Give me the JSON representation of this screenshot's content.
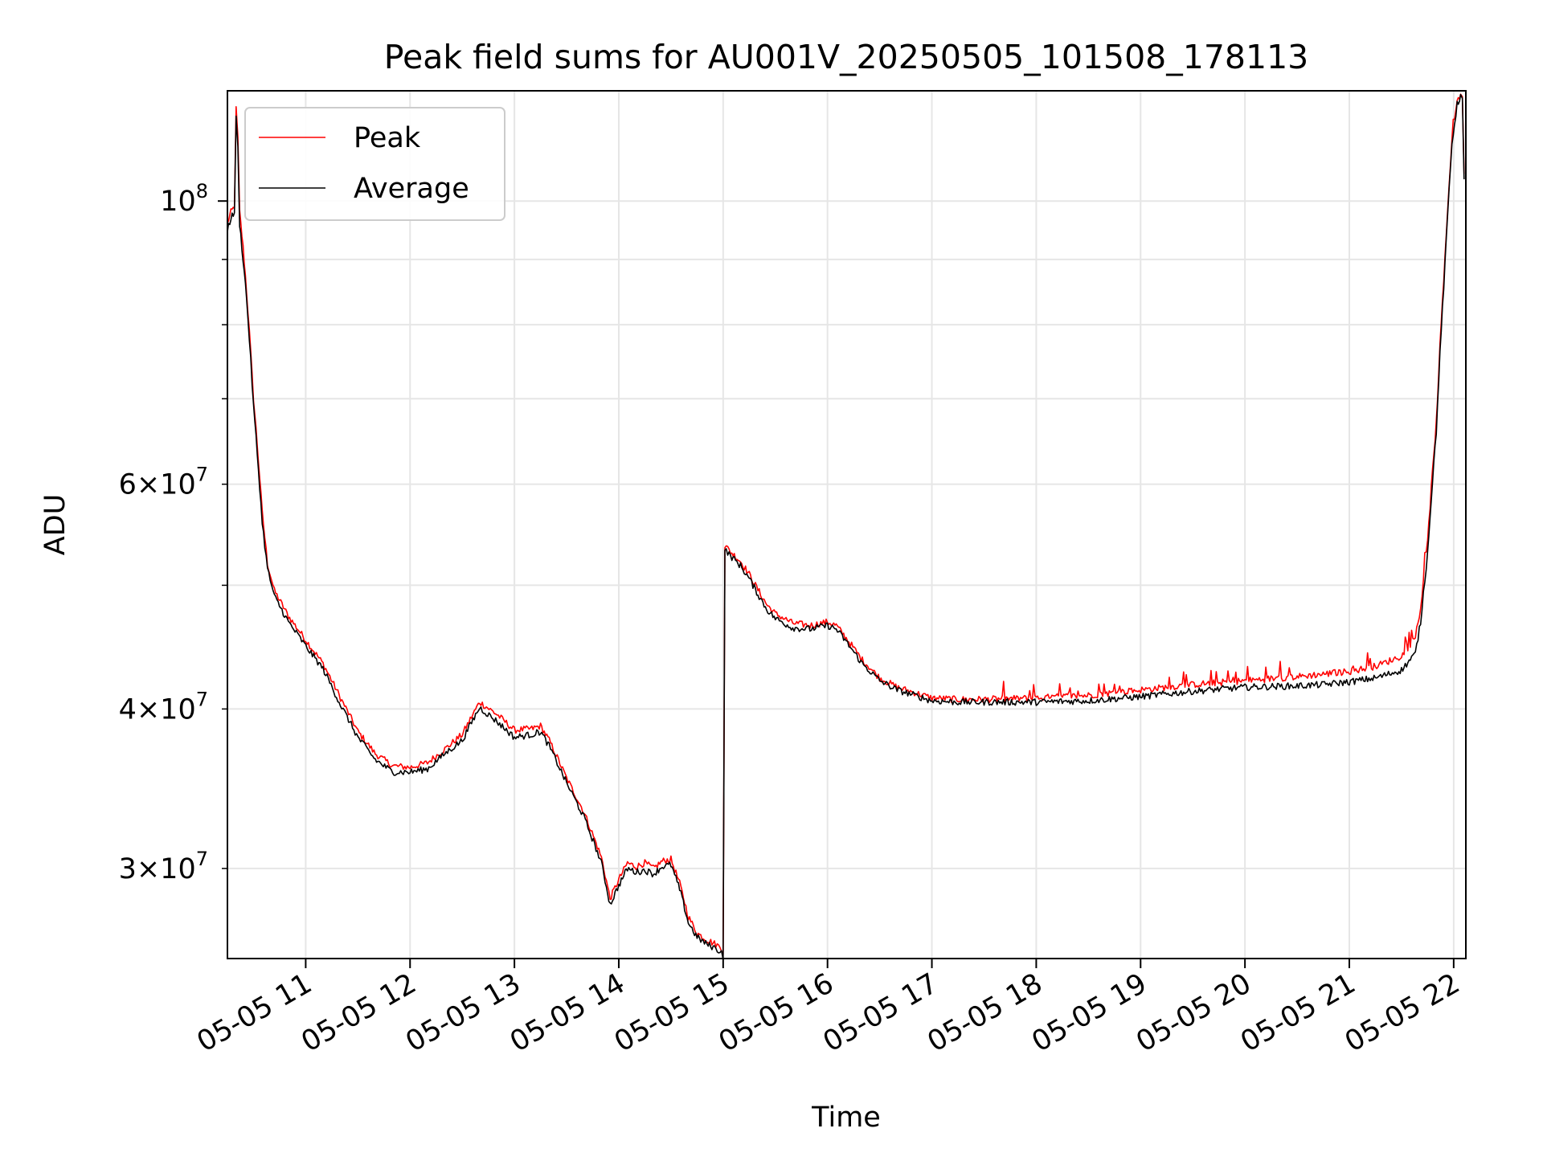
{
  "chart_data": {
    "type": "line",
    "title": "Peak field sums for AU001V_20250505_101508_178113",
    "xlabel": "Time",
    "ylabel": "ADU",
    "y_scale": "log",
    "ylim": [
      25500000,
      122000000
    ],
    "xlim": [
      "2025-05-05 10:15",
      "2025-05-05 22:07"
    ],
    "grid": true,
    "legend_position": "upper-left",
    "x_ticks": [
      {
        "value": "2025-05-05 11:00",
        "label": "05-05 11"
      },
      {
        "value": "2025-05-05 12:00",
        "label": "05-05 12"
      },
      {
        "value": "2025-05-05 13:00",
        "label": "05-05 13"
      },
      {
        "value": "2025-05-05 14:00",
        "label": "05-05 14"
      },
      {
        "value": "2025-05-05 15:00",
        "label": "05-05 15"
      },
      {
        "value": "2025-05-05 16:00",
        "label": "05-05 16"
      },
      {
        "value": "2025-05-05 17:00",
        "label": "05-05 17"
      },
      {
        "value": "2025-05-05 18:00",
        "label": "05-05 18"
      },
      {
        "value": "2025-05-05 19:00",
        "label": "05-05 19"
      },
      {
        "value": "2025-05-05 20:00",
        "label": "05-05 20"
      },
      {
        "value": "2025-05-05 21:00",
        "label": "05-05 21"
      },
      {
        "value": "2025-05-05 22:00",
        "label": "05-05 22"
      }
    ],
    "y_major_ticks": [
      {
        "value": 100000000,
        "mantissa": "",
        "base": "10",
        "exponent": "8"
      }
    ],
    "y_minor_ticks": [
      {
        "value": 30000000,
        "mantissa": "3",
        "base": "10",
        "exponent": "7"
      },
      {
        "value": 40000000,
        "mantissa": "4",
        "base": "10",
        "exponent": "7"
      },
      {
        "value": 50000000
      },
      {
        "value": 60000000,
        "mantissa": "6",
        "base": "10",
        "exponent": "7"
      },
      {
        "value": 70000000
      },
      {
        "value": 80000000
      },
      {
        "value": 90000000
      }
    ],
    "series": [
      {
        "name": "Peak",
        "color": "#ff0000",
        "x": [
          "2025-05-05 10:15",
          "2025-05-05 10:17",
          "2025-05-05 10:19",
          "2025-05-05 10:20",
          "2025-05-05 10:21",
          "2025-05-05 10:22",
          "2025-05-05 10:24",
          "2025-05-05 10:26",
          "2025-05-05 10:30",
          "2025-05-05 10:35",
          "2025-05-05 10:38",
          "2025-05-05 10:42",
          "2025-05-05 10:50",
          "2025-05-05 11:00",
          "2025-05-05 11:10",
          "2025-05-05 11:20",
          "2025-05-05 11:30",
          "2025-05-05 11:40",
          "2025-05-05 11:50",
          "2025-05-05 12:00",
          "2025-05-05 12:10",
          "2025-05-05 12:20",
          "2025-05-05 12:30",
          "2025-05-05 12:40",
          "2025-05-05 12:50",
          "2025-05-05 13:00",
          "2025-05-05 13:10",
          "2025-05-05 13:15",
          "2025-05-05 13:20",
          "2025-05-05 13:30",
          "2025-05-05 13:40",
          "2025-05-05 13:50",
          "2025-05-05 13:55",
          "2025-05-05 14:00",
          "2025-05-05 14:05",
          "2025-05-05 14:10",
          "2025-05-05 14:15",
          "2025-05-05 14:20",
          "2025-05-05 14:25",
          "2025-05-05 14:30",
          "2025-05-05 14:35",
          "2025-05-05 14:40",
          "2025-05-05 14:45",
          "2025-05-05 14:50",
          "2025-05-05 14:55",
          "2025-05-05 14:59",
          "2025-05-05 15:00",
          "2025-05-05 15:01",
          "2025-05-05 15:05",
          "2025-05-05 15:10",
          "2025-05-05 15:15",
          "2025-05-05 15:20",
          "2025-05-05 15:25",
          "2025-05-05 15:30",
          "2025-05-05 15:40",
          "2025-05-05 15:50",
          "2025-05-05 16:00",
          "2025-05-05 16:05",
          "2025-05-05 16:10",
          "2025-05-05 16:20",
          "2025-05-05 16:30",
          "2025-05-05 16:40",
          "2025-05-05 16:50",
          "2025-05-05 17:00",
          "2025-05-05 17:15",
          "2025-05-05 17:30",
          "2025-05-05 18:00",
          "2025-05-05 18:30",
          "2025-05-05 19:00",
          "2025-05-05 19:30",
          "2025-05-05 20:00",
          "2025-05-05 20:30",
          "2025-05-05 20:45",
          "2025-05-05 21:00",
          "2025-05-05 21:15",
          "2025-05-05 21:30",
          "2025-05-05 21:38",
          "2025-05-05 21:41",
          "2025-05-05 21:45",
          "2025-05-05 21:50",
          "2025-05-05 21:55",
          "2025-05-05 21:59",
          "2025-05-05 22:02",
          "2025-05-05 22:04",
          "2025-05-05 22:05",
          "2025-05-05 22:06"
        ],
        "y": [
          96000000,
          98000000,
          99000000,
          118000000,
          112000000,
          98000000,
          92000000,
          85000000,
          70000000,
          57000000,
          52000000,
          49500000,
          47300000,
          45300000,
          43400000,
          40800000,
          38400000,
          36900000,
          36100000,
          36000000,
          36300000,
          37200000,
          38200000,
          40500000,
          39600000,
          38500000,
          38600000,
          38800000,
          37800000,
          35300000,
          33200000,
          30600000,
          28400000,
          29400000,
          30300000,
          30100000,
          30300000,
          30000000,
          30400000,
          30500000,
          29200000,
          27500000,
          26700000,
          26400000,
          26200000,
          26000000,
          25800000,
          53700000,
          53000000,
          52200000,
          51000000,
          49600000,
          48300000,
          47500000,
          46700000,
          46500000,
          46800000,
          46500000,
          45600000,
          43700000,
          42300000,
          41600000,
          41200000,
          40800000,
          40700000,
          40700000,
          40800000,
          41000000,
          41400000,
          41800000,
          42100000,
          42400000,
          42600000,
          42800000,
          43200000,
          44000000,
          45500000,
          48000000,
          54000000,
          67000000,
          90000000,
          112000000,
          120000000,
          121000000,
          120000000,
          105000000
        ]
      },
      {
        "name": "Average",
        "color": "#000000",
        "x": [
          "2025-05-05 10:15",
          "2025-05-05 10:17",
          "2025-05-05 10:19",
          "2025-05-05 10:20",
          "2025-05-05 10:21",
          "2025-05-05 10:22",
          "2025-05-05 10:24",
          "2025-05-05 10:26",
          "2025-05-05 10:30",
          "2025-05-05 10:35",
          "2025-05-05 10:38",
          "2025-05-05 10:42",
          "2025-05-05 10:50",
          "2025-05-05 11:00",
          "2025-05-05 11:10",
          "2025-05-05 11:20",
          "2025-05-05 11:30",
          "2025-05-05 11:40",
          "2025-05-05 11:50",
          "2025-05-05 12:00",
          "2025-05-05 12:10",
          "2025-05-05 12:20",
          "2025-05-05 12:30",
          "2025-05-05 12:40",
          "2025-05-05 12:50",
          "2025-05-05 13:00",
          "2025-05-05 13:10",
          "2025-05-05 13:15",
          "2025-05-05 13:20",
          "2025-05-05 13:30",
          "2025-05-05 13:40",
          "2025-05-05 13:50",
          "2025-05-05 13:55",
          "2025-05-05 14:00",
          "2025-05-05 14:05",
          "2025-05-05 14:10",
          "2025-05-05 14:15",
          "2025-05-05 14:20",
          "2025-05-05 14:25",
          "2025-05-05 14:30",
          "2025-05-05 14:35",
          "2025-05-05 14:40",
          "2025-05-05 14:45",
          "2025-05-05 14:50",
          "2025-05-05 14:55",
          "2025-05-05 14:59",
          "2025-05-05 15:00",
          "2025-05-05 15:01",
          "2025-05-05 15:05",
          "2025-05-05 15:10",
          "2025-05-05 15:15",
          "2025-05-05 15:20",
          "2025-05-05 15:25",
          "2025-05-05 15:30",
          "2025-05-05 15:40",
          "2025-05-05 15:50",
          "2025-05-05 16:00",
          "2025-05-05 16:05",
          "2025-05-05 16:10",
          "2025-05-05 16:20",
          "2025-05-05 16:30",
          "2025-05-05 16:40",
          "2025-05-05 16:50",
          "2025-05-05 17:00",
          "2025-05-05 17:15",
          "2025-05-05 17:30",
          "2025-05-05 18:00",
          "2025-05-05 18:30",
          "2025-05-05 19:00",
          "2025-05-05 19:30",
          "2025-05-05 20:00",
          "2025-05-05 20:30",
          "2025-05-05 20:45",
          "2025-05-05 21:00",
          "2025-05-05 21:15",
          "2025-05-05 21:30",
          "2025-05-05 21:38",
          "2025-05-05 21:41",
          "2025-05-05 21:45",
          "2025-05-05 21:50",
          "2025-05-05 21:55",
          "2025-05-05 21:59",
          "2025-05-05 22:02",
          "2025-05-05 22:04",
          "2025-05-05 22:05",
          "2025-05-05 22:06"
        ],
        "y": [
          95000000,
          97000000,
          98000000,
          116000000,
          110000000,
          96000000,
          90000000,
          84000000,
          69000000,
          56000000,
          51500000,
          49000000,
          46800000,
          44800000,
          43000000,
          40300000,
          38000000,
          36500000,
          35700000,
          35700000,
          35900000,
          36900000,
          37800000,
          40100000,
          39100000,
          38000000,
          38200000,
          38400000,
          37400000,
          35000000,
          32900000,
          30300000,
          28100000,
          29100000,
          30000000,
          29800000,
          29900000,
          29700000,
          30100000,
          30200000,
          28900000,
          27200000,
          26500000,
          26200000,
          26000000,
          25800000,
          25600000,
          53300000,
          52600000,
          51800000,
          50600000,
          49200000,
          47900000,
          47100000,
          46300000,
          46200000,
          46500000,
          46200000,
          45300000,
          43400000,
          42100000,
          41400000,
          41000000,
          40600000,
          40500000,
          40500000,
          40500000,
          40600000,
          40900000,
          41300000,
          41600000,
          41700000,
          41800000,
          42000000,
          42300000,
          42900000,
          44200000,
          46800000,
          53000000,
          66000000,
          89000000,
          111000000,
          119000000,
          121000000,
          120000000,
          104000000
        ]
      }
    ]
  }
}
